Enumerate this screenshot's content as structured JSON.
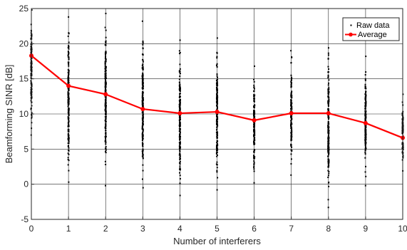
{
  "chart_data": {
    "type": "scatter",
    "xlabel": "Number of interferers",
    "ylabel": "Beamforming SINR [dB]",
    "title": "",
    "xlim": [
      0,
      10
    ],
    "ylim": [
      -5,
      25
    ],
    "x_ticks": [
      0,
      1,
      2,
      3,
      4,
      5,
      6,
      7,
      8,
      9,
      10
    ],
    "y_ticks": [
      -5,
      0,
      5,
      10,
      15,
      20,
      25
    ],
    "grid": true,
    "legend_position": "top-right",
    "series": [
      {
        "name": "Raw data",
        "kind": "scatter",
        "color": "#000000",
        "ranges": [
          {
            "x": 0,
            "min": 7.0,
            "max": 24.8
          },
          {
            "x": 1,
            "min": 0.3,
            "max": 23.8
          },
          {
            "x": 2,
            "min": -0.2,
            "max": 24.3
          },
          {
            "x": 3,
            "min": -0.5,
            "max": 23.2
          },
          {
            "x": 4,
            "min": -1.6,
            "max": 20.5
          },
          {
            "x": 5,
            "min": -0.8,
            "max": 20.8
          },
          {
            "x": 6,
            "min": 0.2,
            "max": 16.8
          },
          {
            "x": 7,
            "min": 1.3,
            "max": 19.0
          },
          {
            "x": 8,
            "min": -3.3,
            "max": 19.4
          },
          {
            "x": 9,
            "min": -0.2,
            "max": 18.2
          },
          {
            "x": 10,
            "min": 1.9,
            "max": 12.8
          }
        ]
      },
      {
        "name": "Average",
        "kind": "line",
        "color": "#ff0000",
        "x": [
          0,
          1,
          2,
          3,
          4,
          5,
          6,
          7,
          8,
          9,
          10
        ],
        "y": [
          18.3,
          14.0,
          12.8,
          10.7,
          10.1,
          10.3,
          9.1,
          10.1,
          10.1,
          8.7,
          6.6
        ]
      }
    ]
  }
}
